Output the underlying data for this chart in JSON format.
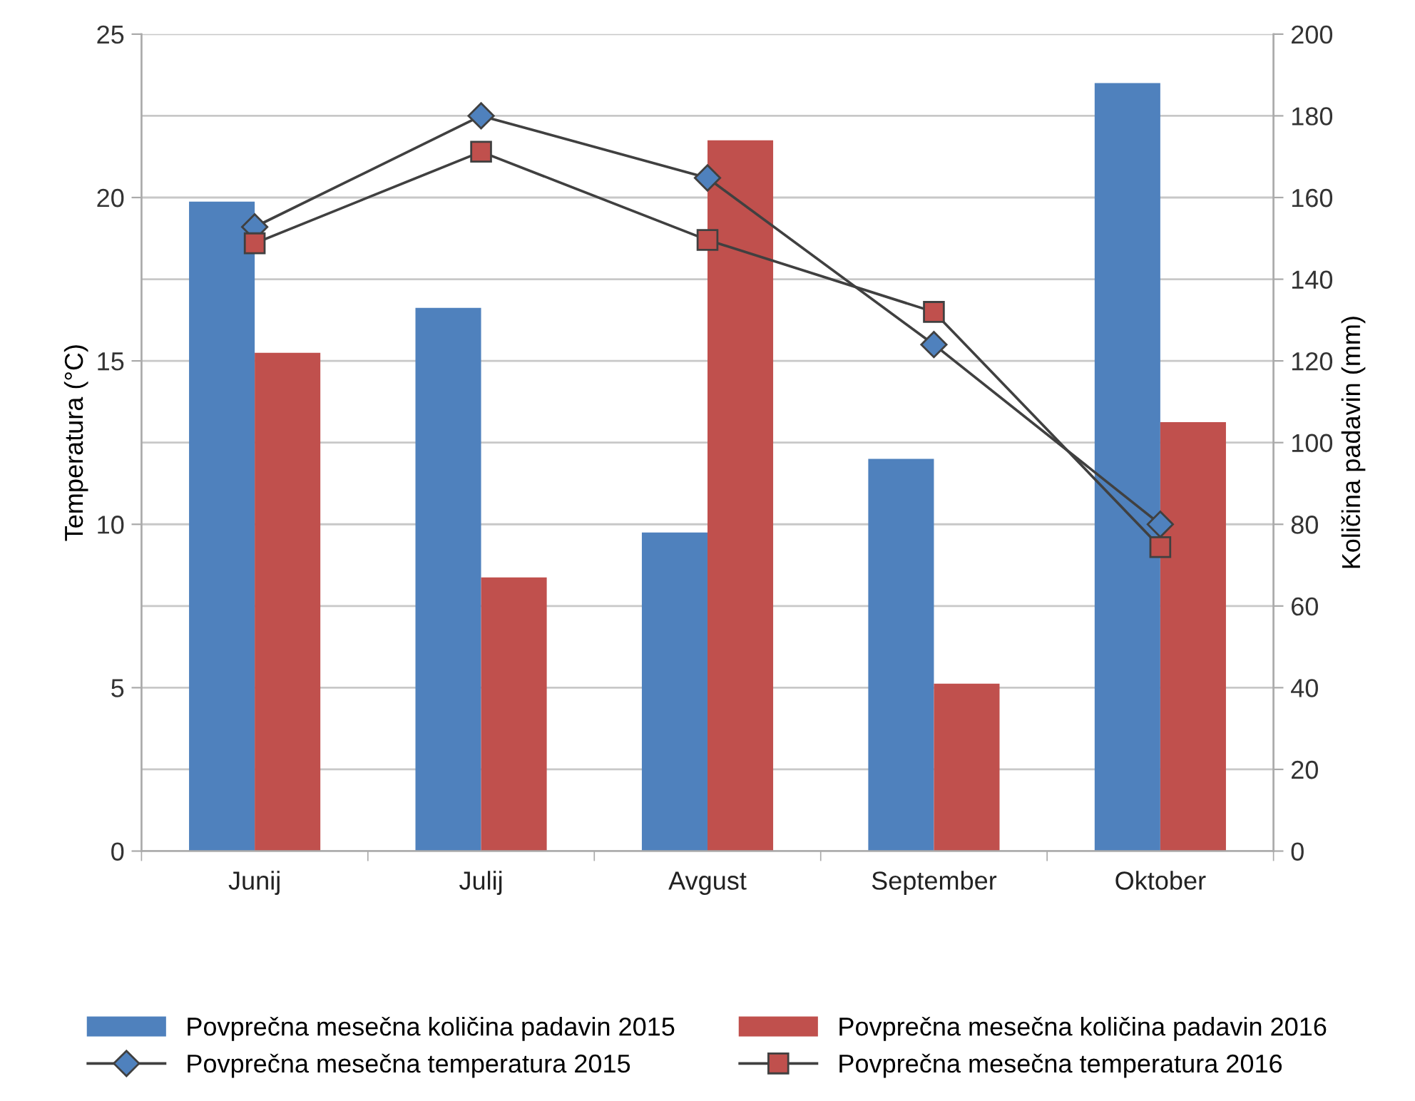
{
  "chart_data": {
    "type": "bar",
    "ylabel": "Temperatura (°C)",
    "y2label": "Količina padavin (mm)",
    "categories": [
      "Junij",
      "Julij",
      "Avgust",
      "September",
      "Oktober"
    ],
    "series": [
      {
        "name": "Povprečna mesečna količina padavin 2015",
        "axis": "y2",
        "color": "#4f81bd",
        "values": [
          159,
          133,
          78,
          96,
          188
        ]
      },
      {
        "name": "Povprečna mesečna količina padavin 2016",
        "axis": "y2",
        "color": "#c0504d",
        "values": [
          122,
          67,
          174,
          41,
          105
        ]
      },
      {
        "name": "Povprečna mesečna temperatura 2015",
        "type": "line",
        "axis": "y",
        "color": "#4f81bd",
        "marker": "diamond",
        "values": [
          19.1,
          22.5,
          20.6,
          15.5,
          10.0
        ]
      },
      {
        "name": "Povprečna mesečna temperatura 2016",
        "type": "line",
        "axis": "y",
        "color": "#c0504d",
        "marker": "square",
        "values": [
          18.6,
          21.4,
          18.7,
          16.5,
          9.3
        ]
      }
    ],
    "ylim": [
      0,
      25
    ],
    "yticks": [
      0,
      5,
      10,
      15,
      20,
      25
    ],
    "y2lim": [
      0,
      200
    ],
    "y2ticks": [
      0,
      20,
      40,
      60,
      80,
      100,
      120,
      140,
      160,
      180,
      200
    ],
    "grid": "y",
    "legend": "bottom"
  }
}
